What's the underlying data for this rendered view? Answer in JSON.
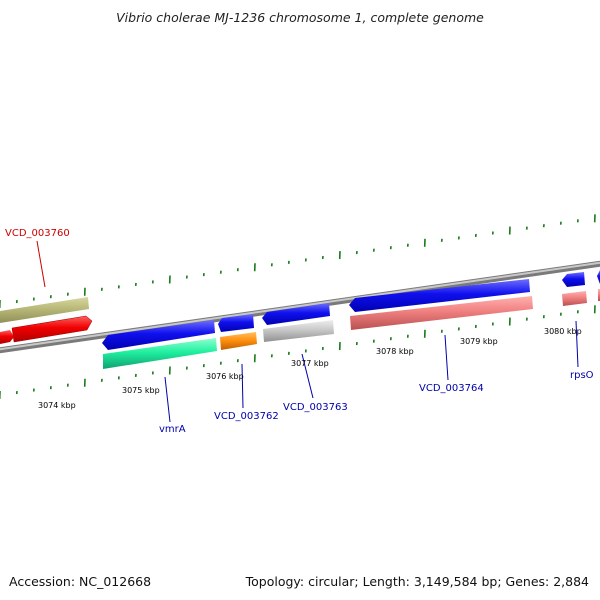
{
  "title": "Vibrio cholerae MJ-1236 chromosome 1, complete genome",
  "footer": {
    "accession": "Accession: NC_012668",
    "summary": "Topology: circular; Length: 3,149,584 bp; Genes: 2,884"
  },
  "colors": {
    "backbone": "#909090",
    "tick": "#1a7a1a",
    "red_label": "#cc0000",
    "blue_label": "#0000aa"
  },
  "kbp_labels": [
    "3074 kbp",
    "3075 kbp",
    "3076 kbp",
    "3077 kbp",
    "3078 kbp",
    "3079 kbp",
    "3080 kbp"
  ],
  "gene_labels": [
    {
      "text": "VCD_003760",
      "color": "red"
    },
    {
      "text": "vmrA",
      "color": "blue"
    },
    {
      "text": "VCD_003762",
      "color": "blue"
    },
    {
      "text": "VCD_003763",
      "color": "blue"
    },
    {
      "text": "VCD_003764",
      "color": "blue"
    },
    {
      "text": "rpsO",
      "color": "blue"
    }
  ]
}
